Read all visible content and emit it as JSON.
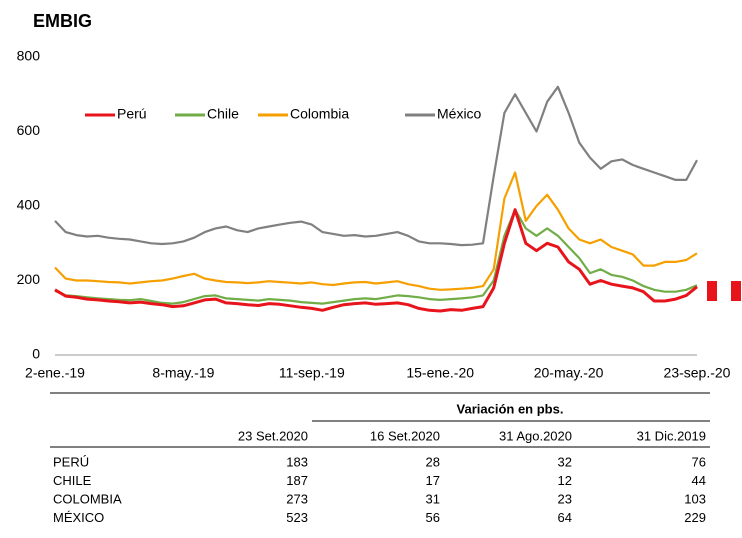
{
  "chart_data": {
    "type": "line",
    "title": "EMBIG",
    "categories": [
      "2-ene.-19",
      null,
      null,
      null,
      null,
      null,
      null,
      null,
      null,
      null,
      null,
      null,
      "8-may.-19",
      null,
      null,
      null,
      null,
      null,
      null,
      null,
      null,
      null,
      null,
      null,
      "11-sep.-19",
      null,
      null,
      null,
      null,
      null,
      null,
      null,
      null,
      null,
      null,
      null,
      "15-ene.-20",
      null,
      null,
      null,
      null,
      null,
      null,
      null,
      null,
      null,
      null,
      null,
      "20-may.-20",
      null,
      null,
      null,
      null,
      null,
      null,
      null,
      null,
      null,
      null,
      null,
      "23-sep.-20"
    ],
    "series": [
      {
        "name": "Perú",
        "color": "#e8141b",
        "values": [
          175,
          158,
          155,
          150,
          148,
          145,
          143,
          140,
          142,
          138,
          135,
          130,
          132,
          140,
          148,
          150,
          140,
          138,
          135,
          133,
          138,
          136,
          132,
          128,
          125,
          120,
          128,
          135,
          138,
          140,
          136,
          138,
          140,
          135,
          125,
          120,
          118,
          122,
          120,
          125,
          130,
          180,
          300,
          390,
          300,
          280,
          300,
          290,
          250,
          230,
          190,
          200,
          190,
          185,
          180,
          170,
          145,
          145,
          150,
          160,
          183
        ]
      },
      {
        "name": "Chile",
        "color": "#70ad47",
        "values": [
          172,
          160,
          158,
          155,
          152,
          150,
          148,
          147,
          150,
          145,
          140,
          138,
          142,
          150,
          158,
          160,
          152,
          150,
          148,
          146,
          150,
          148,
          146,
          142,
          140,
          138,
          142,
          146,
          150,
          152,
          150,
          155,
          160,
          158,
          155,
          150,
          148,
          150,
          152,
          155,
          160,
          200,
          320,
          390,
          340,
          320,
          340,
          320,
          290,
          260,
          220,
          230,
          215,
          210,
          200,
          185,
          175,
          170,
          170,
          175,
          187
        ]
      },
      {
        "name": "Colombia",
        "color": "#f5a000",
        "values": [
          235,
          205,
          200,
          200,
          198,
          196,
          195,
          192,
          195,
          198,
          200,
          205,
          212,
          218,
          205,
          200,
          196,
          195,
          193,
          195,
          198,
          196,
          194,
          192,
          195,
          190,
          188,
          192,
          195,
          196,
          192,
          195,
          198,
          190,
          185,
          178,
          175,
          176,
          178,
          180,
          185,
          230,
          420,
          490,
          360,
          400,
          430,
          390,
          340,
          310,
          300,
          310,
          290,
          280,
          270,
          240,
          240,
          250,
          250,
          255,
          273
        ]
      },
      {
        "name": "México",
        "color": "#808080",
        "values": [
          360,
          330,
          322,
          318,
          320,
          315,
          312,
          310,
          305,
          300,
          298,
          300,
          305,
          315,
          330,
          340,
          345,
          335,
          330,
          340,
          345,
          350,
          355,
          358,
          350,
          330,
          325,
          320,
          322,
          318,
          320,
          325,
          330,
          320,
          305,
          300,
          300,
          298,
          295,
          296,
          300,
          480,
          650,
          700,
          650,
          600,
          680,
          720,
          650,
          570,
          530,
          500,
          520,
          525,
          510,
          500,
          490,
          480,
          470,
          470,
          523
        ]
      }
    ],
    "ylim": [
      0,
      800
    ],
    "yticks": [
      0,
      200,
      400,
      600,
      800
    ],
    "grid": false,
    "legend": "top"
  },
  "table": {
    "title": "Variación en pbs.",
    "header": [
      "23 Set.2020",
      "16 Set.2020",
      "31 Ago.2020",
      "31 Dic.2019"
    ],
    "rows": [
      [
        "PERÚ",
        "183",
        "28",
        "32",
        "76"
      ],
      [
        "CHILE",
        "187",
        "17",
        "12",
        "44"
      ],
      [
        "COLOMBIA",
        "273",
        "31",
        "23",
        "103"
      ],
      [
        "MÉXICO",
        "523",
        "56",
        "64",
        "229"
      ]
    ]
  }
}
